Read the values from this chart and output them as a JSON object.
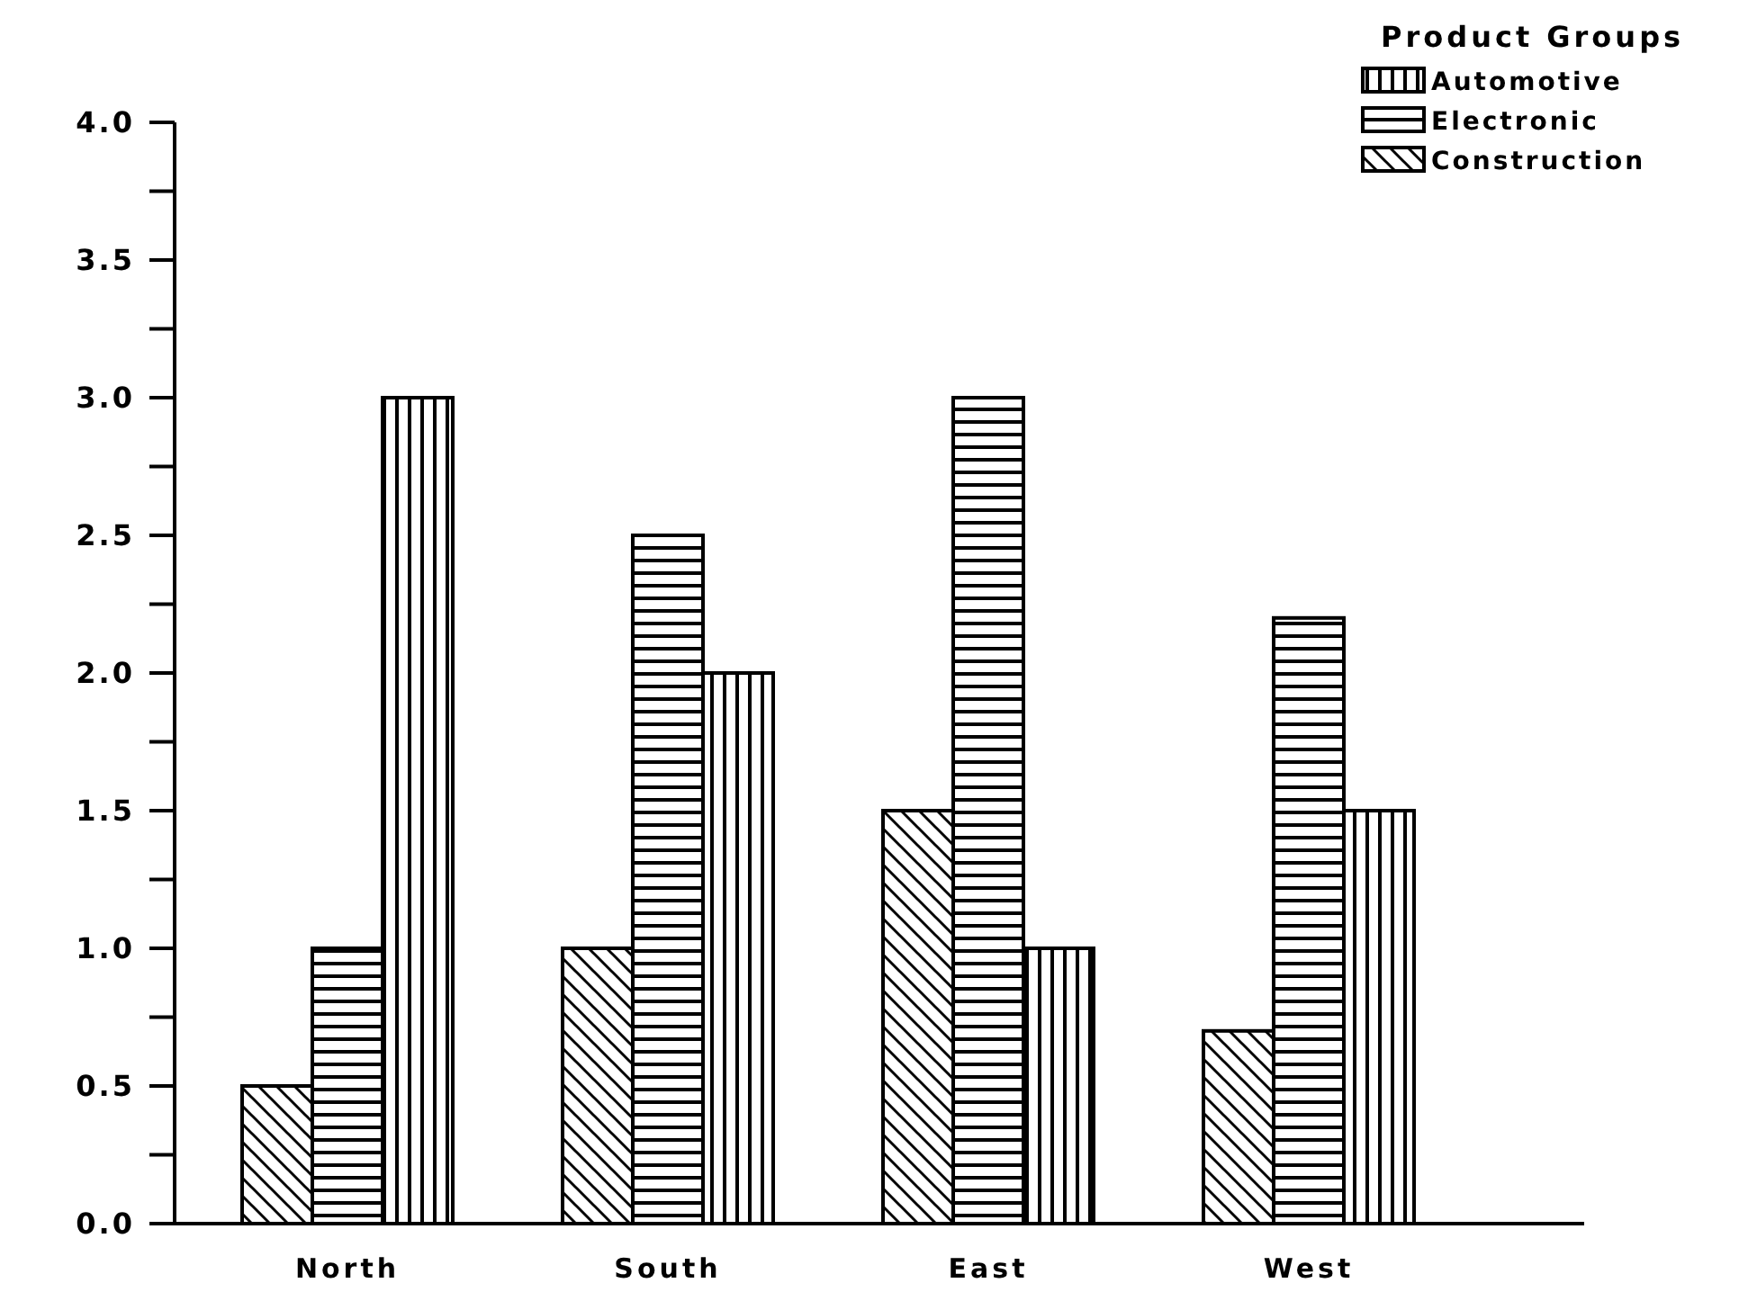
{
  "chart_data": {
    "type": "bar",
    "legend_title": "Product Groups",
    "categories": [
      "North",
      "South",
      "East",
      "West"
    ],
    "series": [
      {
        "name": "Construction",
        "color": "#000000",
        "values": [
          0.5,
          1.0,
          1.5,
          0.7
        ]
      },
      {
        "name": "Electronic",
        "color": "#000000",
        "values": [
          1.0,
          2.5,
          3.0,
          2.2
        ]
      },
      {
        "name": "Automotive",
        "color": "#000000",
        "values": [
          3.0,
          2.0,
          1.0,
          1.5
        ]
      }
    ],
    "ylim": [
      0,
      4
    ],
    "yticks": [
      {
        "value": 0,
        "label": "0.0"
      },
      {
        "value": 0.25,
        "label": null
      },
      {
        "value": 0.5,
        "label": "0.5"
      },
      {
        "value": 0.75,
        "label": null
      },
      {
        "value": 1,
        "label": "1.0"
      },
      {
        "value": 1.25,
        "label": null
      },
      {
        "value": 1.5,
        "label": "1.5"
      },
      {
        "value": 1.75,
        "label": null
      },
      {
        "value": 2,
        "label": "2.0"
      },
      {
        "value": 2.25,
        "label": null
      },
      {
        "value": 2.5,
        "label": "2.5"
      },
      {
        "value": 2.75,
        "label": null
      },
      {
        "value": 3,
        "label": "3.0"
      },
      {
        "value": 3.25,
        "label": null
      },
      {
        "value": 3.5,
        "label": "3.5"
      },
      {
        "value": 3.75,
        "label": null
      },
      {
        "value": 4,
        "label": "4.0"
      }
    ],
    "legend": "top right",
    "grid": false
  }
}
